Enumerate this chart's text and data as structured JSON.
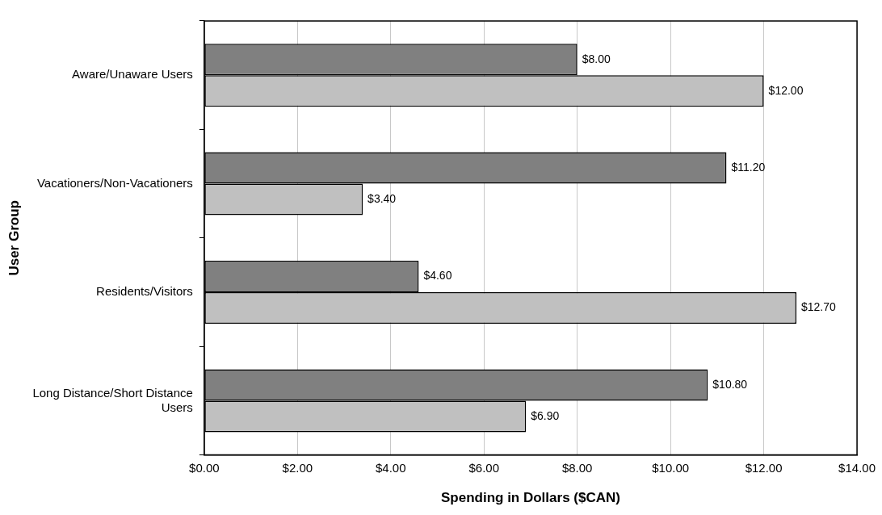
{
  "chart_data": {
    "type": "bar",
    "orientation": "horizontal",
    "xlabel": "Spending in Dollars ($CAN)",
    "ylabel": "User Group",
    "categories": [
      "Aware/Unaware Users",
      "Vacationers/Non-Vacationers",
      "Residents/Visitors",
      "Long Distance/Short Distance Users"
    ],
    "series": [
      {
        "color": "#808080",
        "values": [
          8.0,
          11.2,
          4.6,
          10.8
        ],
        "value_labels": [
          "$8.00",
          "$11.20",
          "$4.60",
          "$10.80"
        ]
      },
      {
        "color": "#c0c0c0",
        "values": [
          12.0,
          3.4,
          12.7,
          6.9
        ],
        "value_labels": [
          "$12.00",
          "$3.40",
          "$12.70",
          "$6.90"
        ]
      }
    ],
    "xlim": [
      0,
      14
    ],
    "xticks": [
      {
        "value": 0,
        "label": "$0.00"
      },
      {
        "value": 2,
        "label": "$2.00"
      },
      {
        "value": 4,
        "label": "$4.00"
      },
      {
        "value": 6,
        "label": "$6.00"
      },
      {
        "value": 8,
        "label": "$8.00"
      },
      {
        "value": 10,
        "label": "$10.00"
      },
      {
        "value": 12,
        "label": "$12.00"
      },
      {
        "value": 14,
        "label": "$14.00"
      }
    ],
    "grid": "x",
    "legend": false
  }
}
